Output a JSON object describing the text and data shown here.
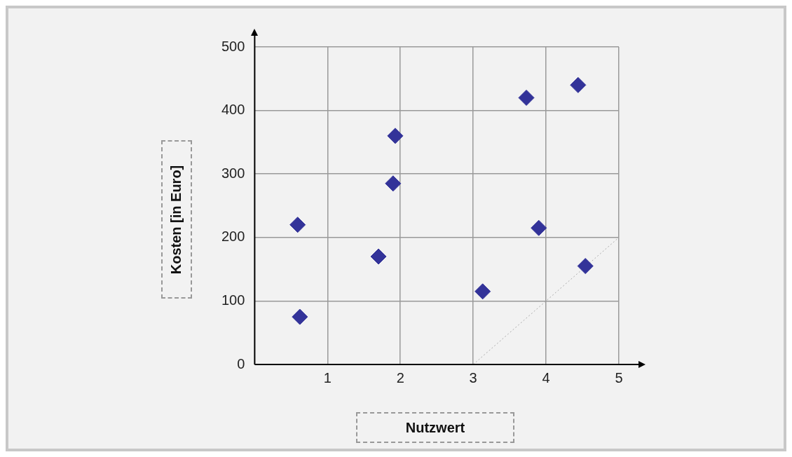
{
  "chart_data": {
    "type": "scatter",
    "xlabel": "Nutzwert",
    "ylabel": "Kosten [in Euro]",
    "xlim": [
      0,
      5
    ],
    "ylim": [
      0,
      500
    ],
    "xticks": [
      1,
      2,
      3,
      4,
      5
    ],
    "yticks": [
      0,
      100,
      200,
      300,
      400,
      500
    ],
    "grid": true,
    "marker": "diamond",
    "series": [
      {
        "color": "#333399",
        "x": [
          0.59,
          0.62,
          1.7,
          1.9,
          1.93,
          3.13,
          3.73,
          3.9,
          4.44,
          4.54
        ],
        "values": [
          220,
          75,
          170,
          285,
          360,
          115,
          420,
          215,
          440,
          155
        ]
      },
      {
        "type": "line",
        "color": "#aaaaaa",
        "line_style": "dotted",
        "marker": "none",
        "x": [
          3,
          5
        ],
        "values": [
          0,
          200
        ]
      }
    ]
  }
}
